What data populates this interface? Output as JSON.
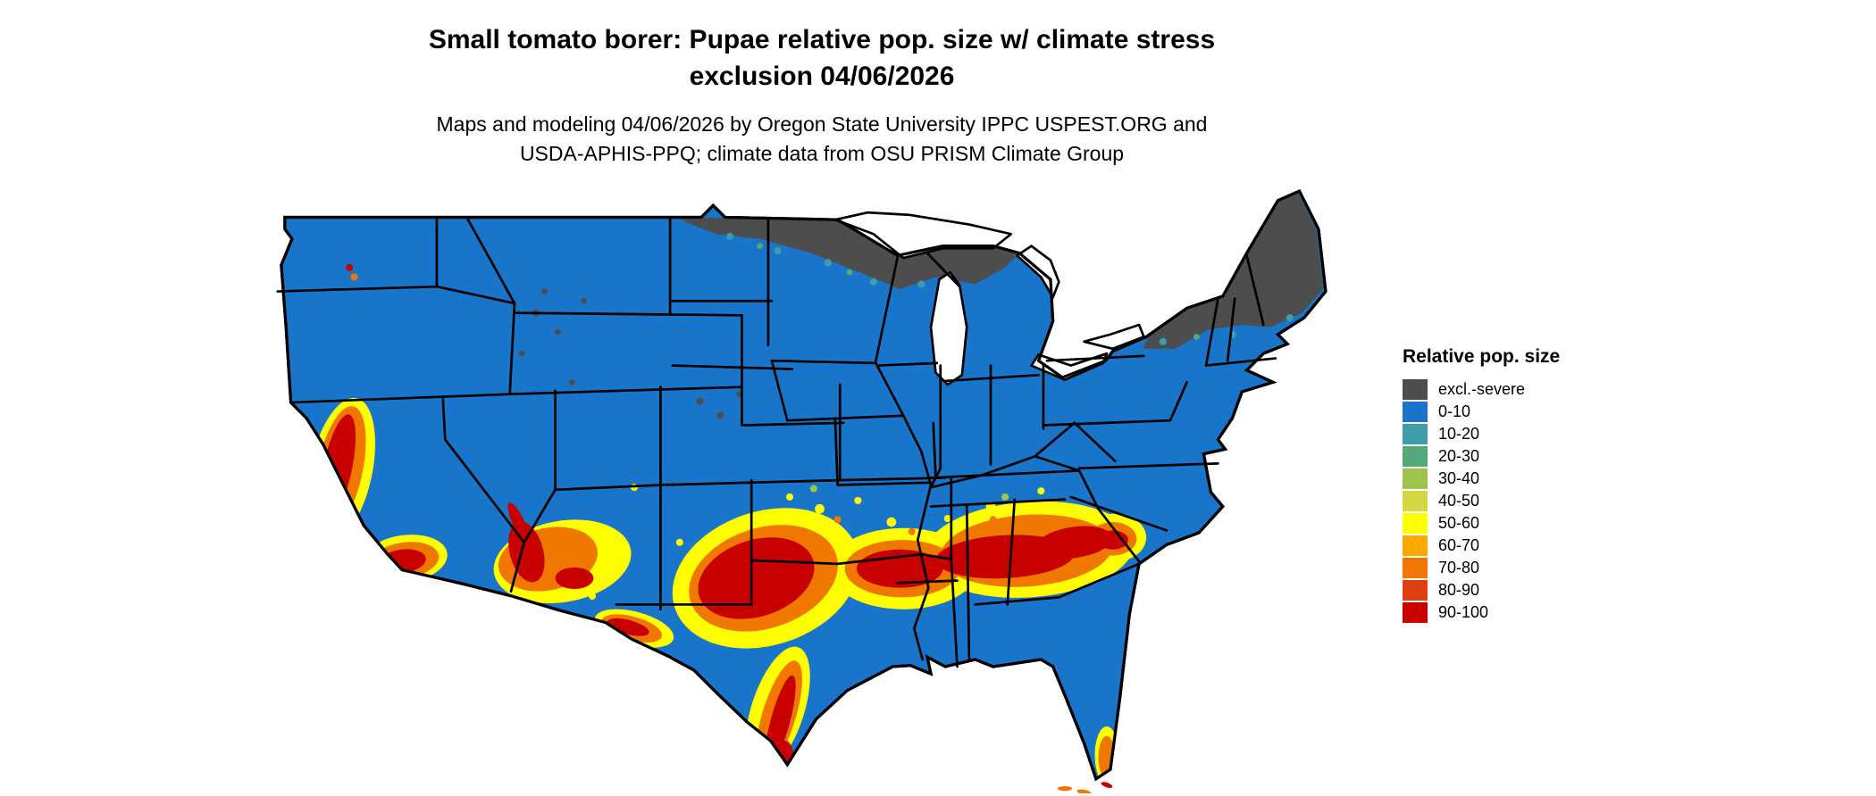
{
  "title": {
    "line1": "Small tomato borer: Pupae relative pop. size w/ climate stress",
    "line2": "exclusion 04/06/2026"
  },
  "subtitle": {
    "line1": "Maps and modeling 04/06/2026 by Oregon State University IPPC USPEST.ORG and",
    "line2": "USDA-APHIS-PPQ; climate data from OSU PRISM Climate Group"
  },
  "legend": {
    "title": "Relative pop. size",
    "items": [
      {
        "label": "excl.-severe",
        "color": "#4D4D4D"
      },
      {
        "label": "0-10",
        "color": "#1975C9"
      },
      {
        "label": "10-20",
        "color": "#3E9CAB"
      },
      {
        "label": "20-30",
        "color": "#55A878"
      },
      {
        "label": "30-40",
        "color": "#9DC44D"
      },
      {
        "label": "40-50",
        "color": "#D3D743"
      },
      {
        "label": "50-60",
        "color": "#FFFF00"
      },
      {
        "label": "60-70",
        "color": "#FFA800"
      },
      {
        "label": "70-80",
        "color": "#F07800"
      },
      {
        "label": "80-90",
        "color": "#E04010"
      },
      {
        "label": "90-100",
        "color": "#C80000"
      }
    ]
  },
  "map": {
    "region": "Contiguous United States",
    "base_value_class": "0-10",
    "background_color": "#FFFFFF",
    "border_color": "#000000",
    "excluded_areas": [
      "northern Minnesota / northern Great Lakes strip",
      "northern New England and Adirondacks"
    ],
    "high_population_areas": [
      "California Central Valley",
      "southern California",
      "southern Arizona",
      "Rio Grande corridor",
      "central Texas and Oklahoma border band",
      "Gulf South band through Louisiana, Mississippi, Alabama, Georgia",
      "South Carolina coastal plain",
      "southern Florida and Keys"
    ]
  }
}
